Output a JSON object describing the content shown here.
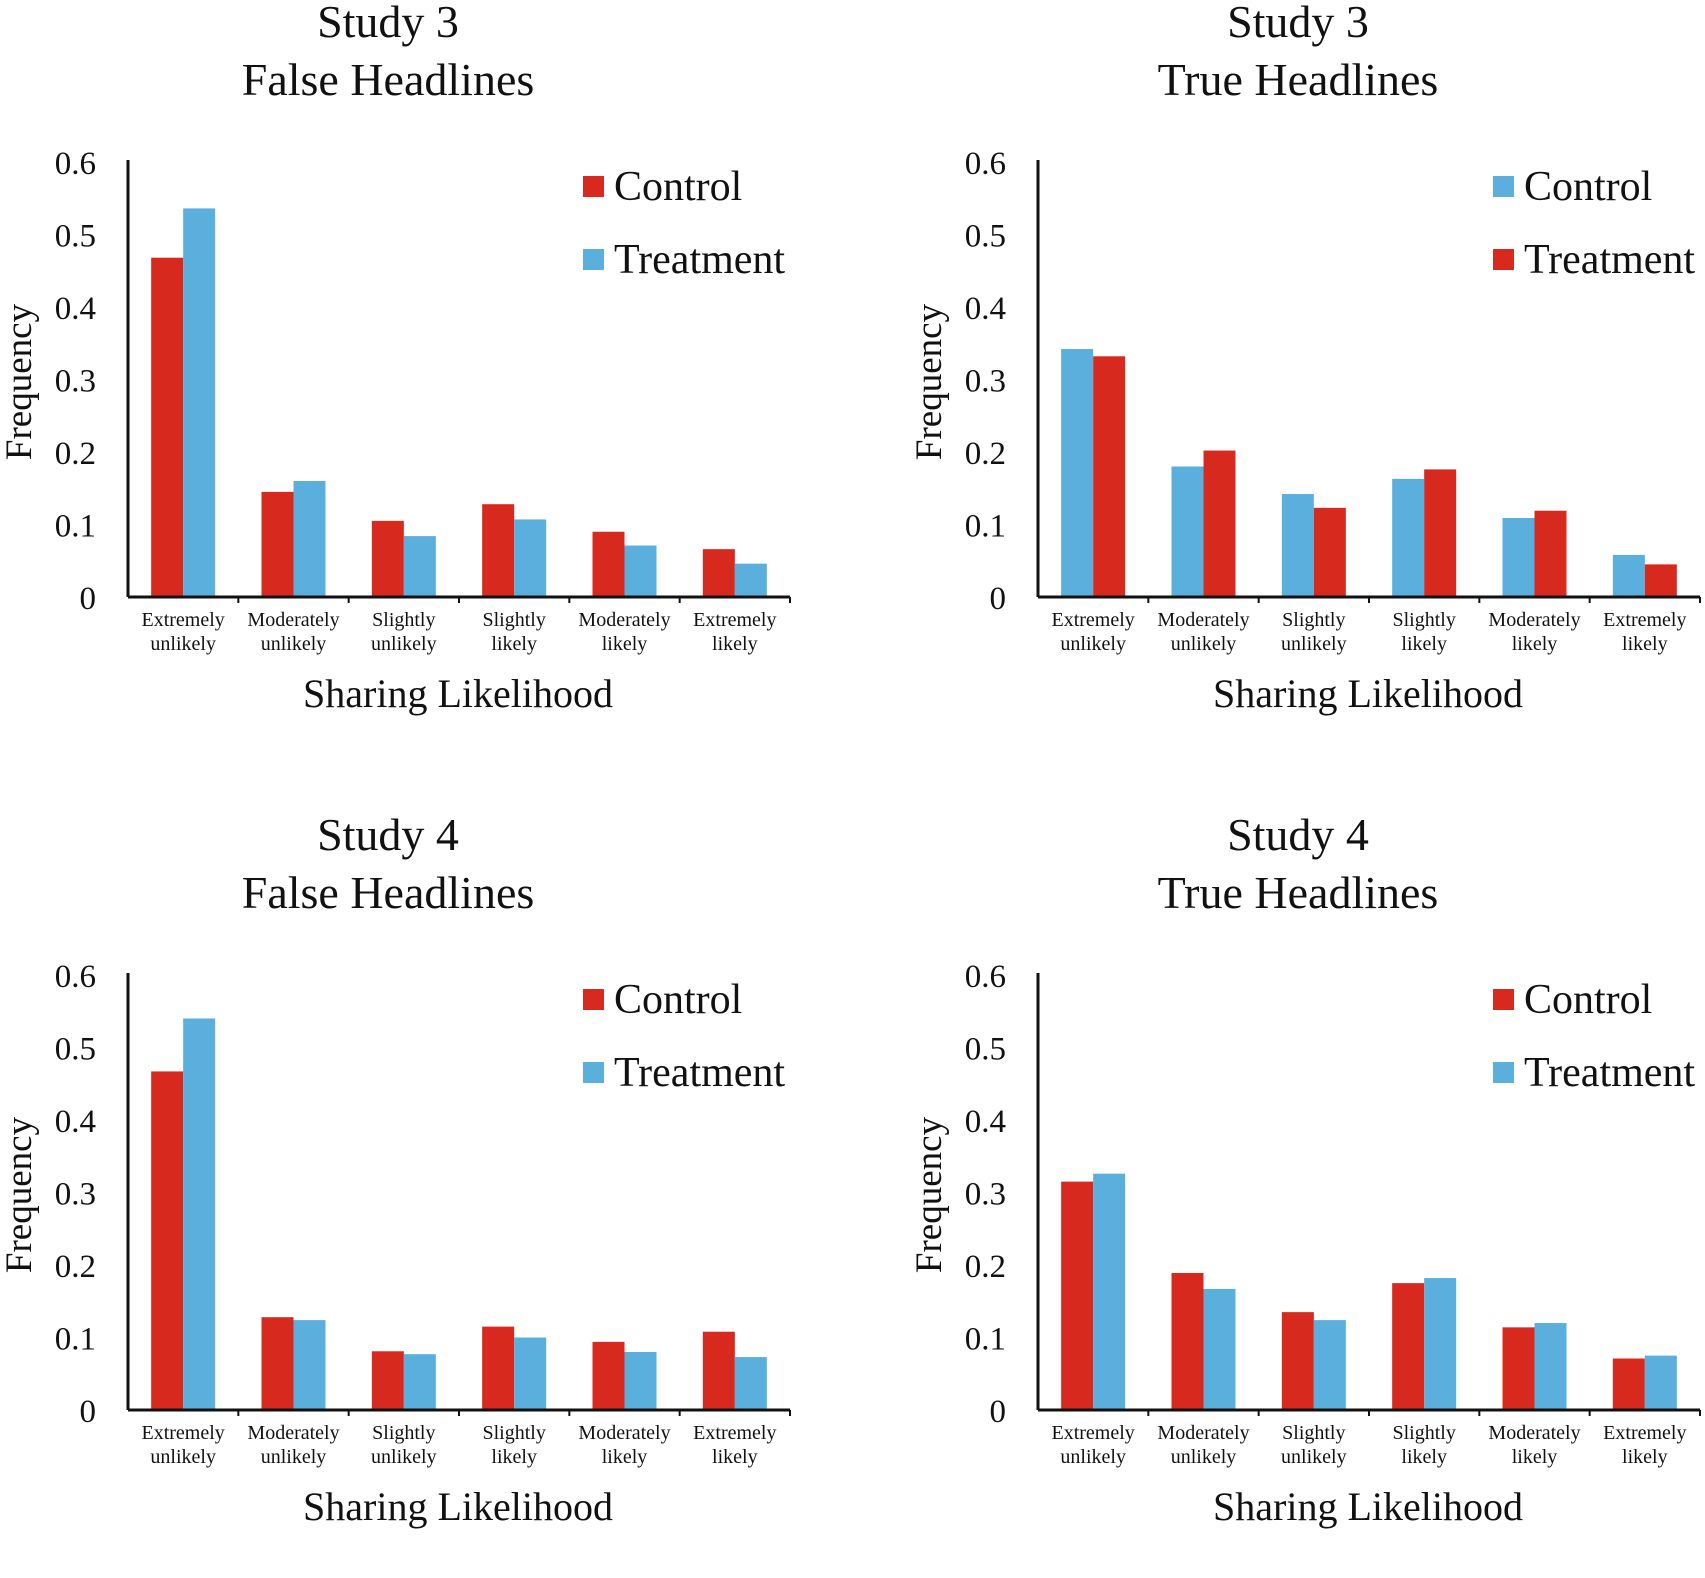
{
  "colors": {
    "red": "#D8291E",
    "blue": "#5AAFDD",
    "axis": "#111111"
  },
  "chart_data": [
    {
      "id": "s3-false",
      "type": "bar",
      "title": [
        "Study 3",
        "False Headlines"
      ],
      "xlabel": "Sharing  Likelihood",
      "ylabel": "Frequency",
      "ylim": [
        0,
        0.6
      ],
      "yticks": [
        "0",
        "0.1",
        "0.2",
        "0.3",
        "0.4",
        "0.5",
        "0.6"
      ],
      "categories": [
        [
          "Extremely",
          "unlikely"
        ],
        [
          "Moderately",
          "unlikely"
        ],
        [
          "Slightly",
          "unlikely"
        ],
        [
          "Slightly",
          "likely"
        ],
        [
          "Moderately",
          "likely"
        ],
        [
          "Extremely",
          "likely"
        ]
      ],
      "series": [
        {
          "name": "Control",
          "color": "red",
          "values": [
            0.468,
            0.145,
            0.105,
            0.128,
            0.09,
            0.066
          ]
        },
        {
          "name": "Treatment",
          "color": "blue",
          "values": [
            0.536,
            0.16,
            0.084,
            0.107,
            0.071,
            0.046
          ]
        }
      ]
    },
    {
      "id": "s3-true",
      "type": "bar",
      "title": [
        "Study 3",
        "True Headlines"
      ],
      "xlabel": "Sharing Likelihood",
      "ylabel": "Frequency",
      "ylim": [
        0,
        0.6
      ],
      "yticks": [
        "0",
        "0.1",
        "0.2",
        "0.3",
        "0.4",
        "0.5",
        "0.6"
      ],
      "categories": [
        [
          "Extremely",
          "unlikely"
        ],
        [
          "Moderately",
          "unlikely"
        ],
        [
          "Slightly",
          "unlikely"
        ],
        [
          "Slightly",
          "likely"
        ],
        [
          "Moderately",
          "likely"
        ],
        [
          "Extremely",
          "likely"
        ]
      ],
      "series": [
        {
          "name": "Control",
          "color": "blue",
          "values": [
            0.342,
            0.18,
            0.142,
            0.163,
            0.109,
            0.058
          ]
        },
        {
          "name": "Treatment",
          "color": "red",
          "values": [
            0.332,
            0.202,
            0.123,
            0.176,
            0.119,
            0.045
          ]
        }
      ]
    },
    {
      "id": "s4-false",
      "type": "bar",
      "title": [
        "Study 4",
        "False Headlines"
      ],
      "xlabel": "Sharing Likelihood",
      "ylabel": "Frequency",
      "ylim": [
        0,
        0.6
      ],
      "yticks": [
        "0",
        "0.1",
        "0.2",
        "0.3",
        "0.4",
        "0.5",
        "0.6"
      ],
      "categories": [
        [
          "Extremely",
          "unlikely"
        ],
        [
          "Moderately",
          "unlikely"
        ],
        [
          "Slightly",
          "unlikely"
        ],
        [
          "Slightly",
          "likely"
        ],
        [
          "Moderately",
          "likely"
        ],
        [
          "Extremely",
          "likely"
        ]
      ],
      "series": [
        {
          "name": "Control",
          "color": "red",
          "values": [
            0.467,
            0.128,
            0.081,
            0.115,
            0.094,
            0.108
          ]
        },
        {
          "name": "Treatment",
          "color": "blue",
          "values": [
            0.54,
            0.124,
            0.077,
            0.1,
            0.08,
            0.073
          ]
        }
      ]
    },
    {
      "id": "s4-true",
      "type": "bar",
      "title": [
        "Study 4",
        "True Headlines"
      ],
      "xlabel": "Sharing Likelihood",
      "ylabel": "Frequency",
      "ylim": [
        0,
        0.6
      ],
      "yticks": [
        "0",
        "0.1",
        "0.2",
        "0.3",
        "0.4",
        "0.5",
        "0.6"
      ],
      "categories": [
        [
          "Extremely",
          "unlikely"
        ],
        [
          "Moderately",
          "unlikely"
        ],
        [
          "Slightly",
          "unlikely"
        ],
        [
          "Slightly",
          "likely"
        ],
        [
          "Moderately",
          "likely"
        ],
        [
          "Extremely",
          "likely"
        ]
      ],
      "series": [
        {
          "name": "Control",
          "color": "red",
          "values": [
            0.315,
            0.189,
            0.135,
            0.175,
            0.114,
            0.071
          ]
        },
        {
          "name": "Treatment",
          "color": "blue",
          "values": [
            0.326,
            0.167,
            0.124,
            0.182,
            0.12,
            0.075
          ]
        }
      ]
    }
  ]
}
